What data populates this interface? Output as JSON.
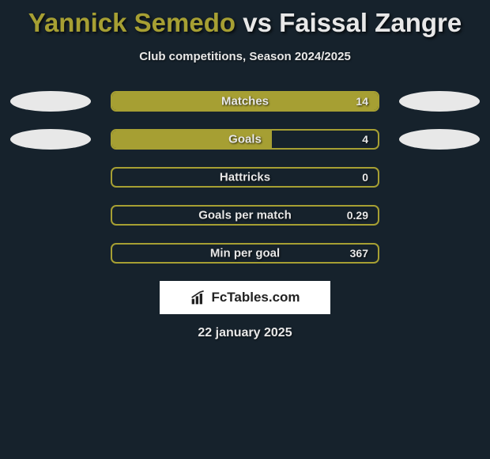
{
  "title": {
    "player1": "Yannick Semedo",
    "vs": "vs",
    "player2": "Faissal Zangre"
  },
  "subtitle": "Club competitions, Season 2024/2025",
  "colors": {
    "background": "#16222c",
    "accent": "#a69f33",
    "text": "#e8e8e8",
    "oval": "#e8e8e8"
  },
  "stats": [
    {
      "label": "Matches",
      "value": "14",
      "fill_percent": 100,
      "show_left_oval": true,
      "show_right_oval": true
    },
    {
      "label": "Goals",
      "value": "4",
      "fill_percent": 60,
      "show_left_oval": true,
      "show_right_oval": true
    },
    {
      "label": "Hattricks",
      "value": "0",
      "fill_percent": 0,
      "show_left_oval": false,
      "show_right_oval": false
    },
    {
      "label": "Goals per match",
      "value": "0.29",
      "fill_percent": 0,
      "show_left_oval": false,
      "show_right_oval": false
    },
    {
      "label": "Min per goal",
      "value": "367",
      "fill_percent": 0,
      "show_left_oval": false,
      "show_right_oval": false
    }
  ],
  "logo": {
    "text": "FcTables.com"
  },
  "date": "22 january 2025"
}
